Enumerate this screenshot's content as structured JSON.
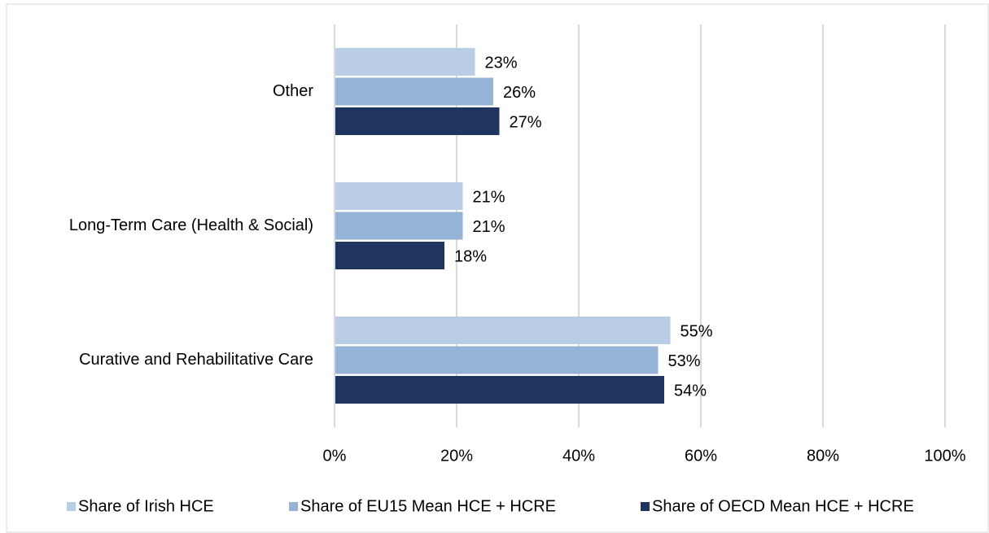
{
  "chart_data": {
    "type": "bar",
    "orientation": "horizontal",
    "categories": [
      "Other",
      "Long-Term Care (Health & Social)",
      "Curative and Rehabilitative Care"
    ],
    "series": [
      {
        "name": "Share of Irish HCE",
        "color": "#b9cde5",
        "values": [
          23,
          21,
          55
        ],
        "value_labels": [
          "23%",
          "21%",
          "55%"
        ]
      },
      {
        "name": "Share of EU15 Mean HCE + HCRE",
        "color": "#95b3d7",
        "values": [
          26,
          21,
          53
        ],
        "value_labels": [
          "26%",
          "21%",
          "53%"
        ]
      },
      {
        "name": "Share of OECD Mean HCE + HCRE",
        "color": "#1f3560",
        "values": [
          27,
          18,
          54
        ],
        "value_labels": [
          "27%",
          "18%",
          "54%"
        ]
      }
    ],
    "xlim": [
      0,
      100
    ],
    "xticks": [
      {
        "value": 0,
        "label": "0%"
      },
      {
        "value": 20,
        "label": "20%"
      },
      {
        "value": 40,
        "label": "40%"
      },
      {
        "value": 60,
        "label": "60%"
      },
      {
        "value": 80,
        "label": "80%"
      },
      {
        "value": 100,
        "label": "100%"
      }
    ],
    "grid": true,
    "legend": "bottom"
  }
}
